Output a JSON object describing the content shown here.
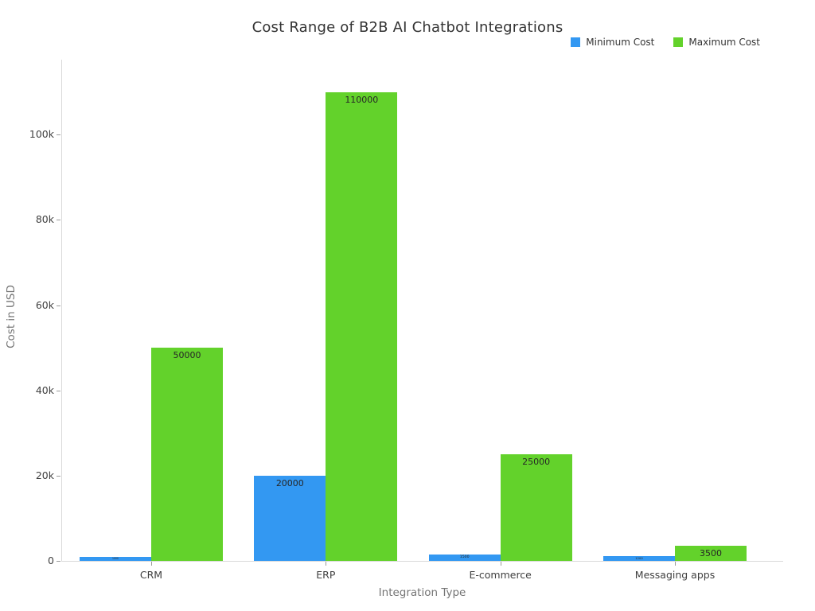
{
  "chart_data": {
    "type": "bar",
    "title": "Cost Range of B2B AI Chatbot Integrations",
    "xlabel": "Integration Type",
    "ylabel": "Cost in USD",
    "categories": [
      "CRM",
      "ERP",
      "E-commerce",
      "Messaging apps"
    ],
    "series": [
      {
        "name": "Minimum Cost",
        "color": "#3398F2",
        "values": [
          1000,
          20000,
          1500,
          1200
        ],
        "data_labels": [
          "1000",
          "20000",
          "1500",
          "1200"
        ]
      },
      {
        "name": "Maximum Cost",
        "color": "#63D22B",
        "values": [
          50000,
          110000,
          25000,
          3500
        ],
        "data_labels": [
          "50000",
          "110000",
          "25000",
          "3500"
        ]
      }
    ],
    "y_ticks": [
      {
        "value": 0,
        "label": "0"
      },
      {
        "value": 20000,
        "label": "20k"
      },
      {
        "value": 40000,
        "label": "40k"
      },
      {
        "value": 60000,
        "label": "60k"
      },
      {
        "value": 80000,
        "label": "80k"
      },
      {
        "value": 100000,
        "label": "100k"
      }
    ],
    "ylim": [
      0,
      117600
    ],
    "grid": false,
    "legend_position": "top-right",
    "background_color": "#ffffff",
    "axis_line_color": "#d9d9d9"
  }
}
